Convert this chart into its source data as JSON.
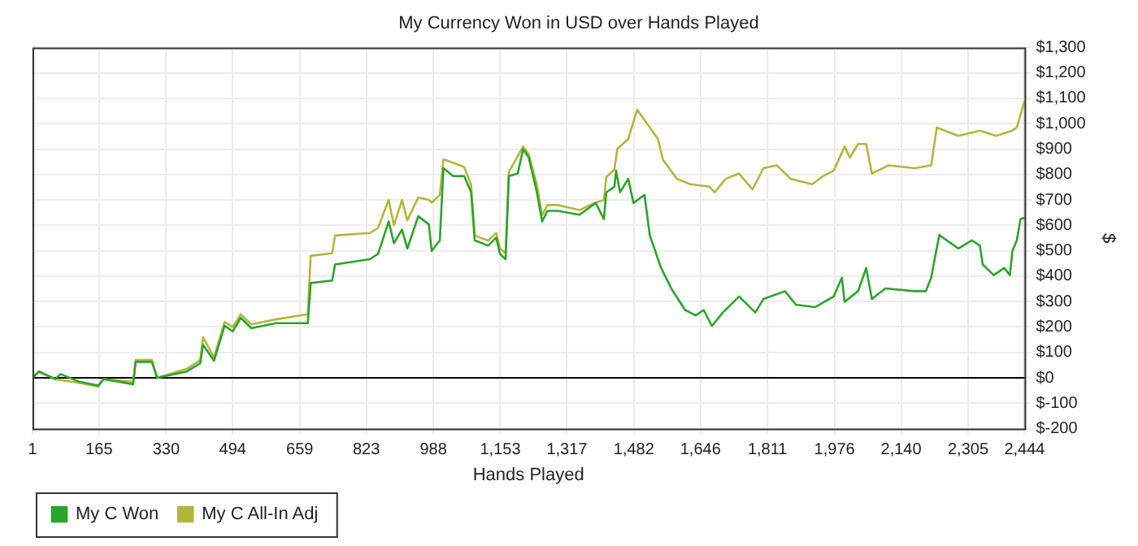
{
  "chart_data": {
    "type": "line",
    "title": "My Currency Won in USD over Hands Played",
    "xlabel": "Hands Played",
    "ylabel": "$",
    "xlim": [
      1,
      2444
    ],
    "xticks": [
      1,
      165,
      330,
      494,
      659,
      823,
      988,
      {
        "value": 1153,
        "label": "1,153"
      },
      {
        "value": 1317,
        "label": "1,317"
      },
      {
        "value": 1482,
        "label": "1,482"
      },
      {
        "value": 1646,
        "label": "1,646"
      },
      {
        "value": 1811,
        "label": "1,811"
      },
      {
        "value": 1976,
        "label": "1,976"
      },
      {
        "value": 2140,
        "label": "2,140"
      },
      {
        "value": 2305,
        "label": "2,305"
      },
      {
        "value": 2444,
        "label": "2,444"
      }
    ],
    "ylim": [
      -200,
      1300
    ],
    "yticks": [
      {
        "value": -200,
        "label": "$-200"
      },
      {
        "value": -100,
        "label": "$-100"
      },
      {
        "value": 0,
        "label": "$0"
      },
      {
        "value": 100,
        "label": "$100"
      },
      {
        "value": 200,
        "label": "$200"
      },
      {
        "value": 300,
        "label": "$300"
      },
      {
        "value": 400,
        "label": "$400"
      },
      {
        "value": 500,
        "label": "$500"
      },
      {
        "value": 600,
        "label": "$600"
      },
      {
        "value": 700,
        "label": "$700"
      },
      {
        "value": 800,
        "label": "$800"
      },
      {
        "value": 900,
        "label": "$900"
      },
      {
        "value": 1000,
        "label": "$1,000"
      },
      {
        "value": 1100,
        "label": "$1,100"
      },
      {
        "value": 1200,
        "label": "$1,200"
      },
      {
        "value": 1300,
        "label": "$1,300"
      }
    ],
    "grid": true,
    "legend": "bottom left",
    "marker": "none",
    "line_style": "solid",
    "ref_lines": [
      {
        "axis": "y",
        "value": 0,
        "color": "#000000"
      }
    ],
    "series": [
      {
        "name": "My C Won",
        "color": "#2aa52a",
        "x": [
          1,
          17,
          57,
          70,
          116,
          163,
          176,
          249,
          255,
          295,
          308,
          381,
          414,
          421,
          448,
          474,
          494,
          514,
          540,
          600,
          679,
          686,
          739,
          746,
          832,
          852,
          878,
          891,
          911,
          924,
          951,
          977,
          984,
          1004,
          1013,
          1037,
          1064,
          1081,
          1090,
          1123,
          1143,
          1152,
          1166,
          1174,
          1196,
          1209,
          1223,
          1243,
          1256,
          1269,
          1294,
          1348,
          1388,
          1408,
          1414,
          1434,
          1438,
          1448,
          1468,
          1481,
          1508,
          1521,
          1548,
          1574,
          1608,
          1634,
          1654,
          1674,
          1701,
          1741,
          1781,
          1801,
          1854,
          1881,
          1928,
          1974,
          1994,
          2001,
          2034,
          2054,
          2068,
          2101,
          2174,
          2201,
          2214,
          2234,
          2281,
          2314,
          2334,
          2341,
          2368,
          2394,
          2408,
          2414,
          2425,
          2434,
          2444
        ],
        "values": [
          0,
          25,
          -5,
          15,
          -15,
          -30,
          -5,
          -25,
          63,
          63,
          0,
          25,
          57,
          130,
          67,
          205,
          183,
          236,
          195,
          215,
          215,
          373,
          383,
          446,
          467,
          488,
          615,
          530,
          583,
          509,
          636,
          604,
          499,
          541,
          825,
          794,
          794,
          731,
          541,
          520,
          552,
          488,
          467,
          794,
          804,
          899,
          867,
          731,
          615,
          657,
          657,
          642,
          688,
          625,
          730,
          752,
          815,
          730,
          783,
          688,
          720,
          562,
          436,
          352,
          267,
          246,
          267,
          204,
          257,
          320,
          257,
          310,
          341,
          288,
          278,
          320,
          394,
          299,
          341,
          432,
          310,
          352,
          341,
          341,
          394,
          562,
          509,
          541,
          520,
          446,
          404,
          432,
          404,
          499,
          541,
          625,
          630
        ]
      },
      {
        "name": "My C All-In Adj",
        "color": "#b5b53a",
        "x": [
          1,
          17,
          57,
          116,
          163,
          176,
          249,
          255,
          295,
          308,
          381,
          414,
          421,
          448,
          474,
          494,
          514,
          540,
          600,
          679,
          686,
          739,
          746,
          832,
          852,
          878,
          891,
          911,
          924,
          951,
          977,
          984,
          1004,
          1013,
          1064,
          1081,
          1090,
          1123,
          1143,
          1152,
          1166,
          1174,
          1209,
          1223,
          1243,
          1256,
          1269,
          1294,
          1348,
          1388,
          1408,
          1414,
          1434,
          1441,
          1468,
          1490,
          1541,
          1554,
          1588,
          1621,
          1668,
          1681,
          1708,
          1741,
          1774,
          1801,
          1834,
          1868,
          1921,
          1948,
          1974,
          2001,
          2014,
          2034,
          2054,
          2068,
          2108,
          2174,
          2214,
          2228,
          2281,
          2334,
          2374,
          2414,
          2425,
          2444
        ],
        "values": [
          0,
          25,
          -5,
          -20,
          -35,
          -5,
          -15,
          70,
          70,
          0,
          35,
          70,
          160,
          80,
          220,
          200,
          250,
          210,
          230,
          250,
          480,
          490,
          560,
          570,
          590,
          700,
          600,
          700,
          620,
          710,
          700,
          690,
          720,
          860,
          830,
          760,
          560,
          540,
          570,
          510,
          490,
          810,
          910,
          880,
          760,
          640,
          680,
          680,
          660,
          690,
          700,
          790,
          820,
          900,
          940,
          1055,
          940,
          857,
          783,
          762,
          752,
          730,
          783,
          804,
          741,
          825,
          836,
          783,
          762,
          794,
          815,
          910,
          867,
          920,
          920,
          804,
          836,
          825,
          836,
          985,
          952,
          973,
          952,
          973,
          985,
          1090
        ]
      }
    ]
  }
}
